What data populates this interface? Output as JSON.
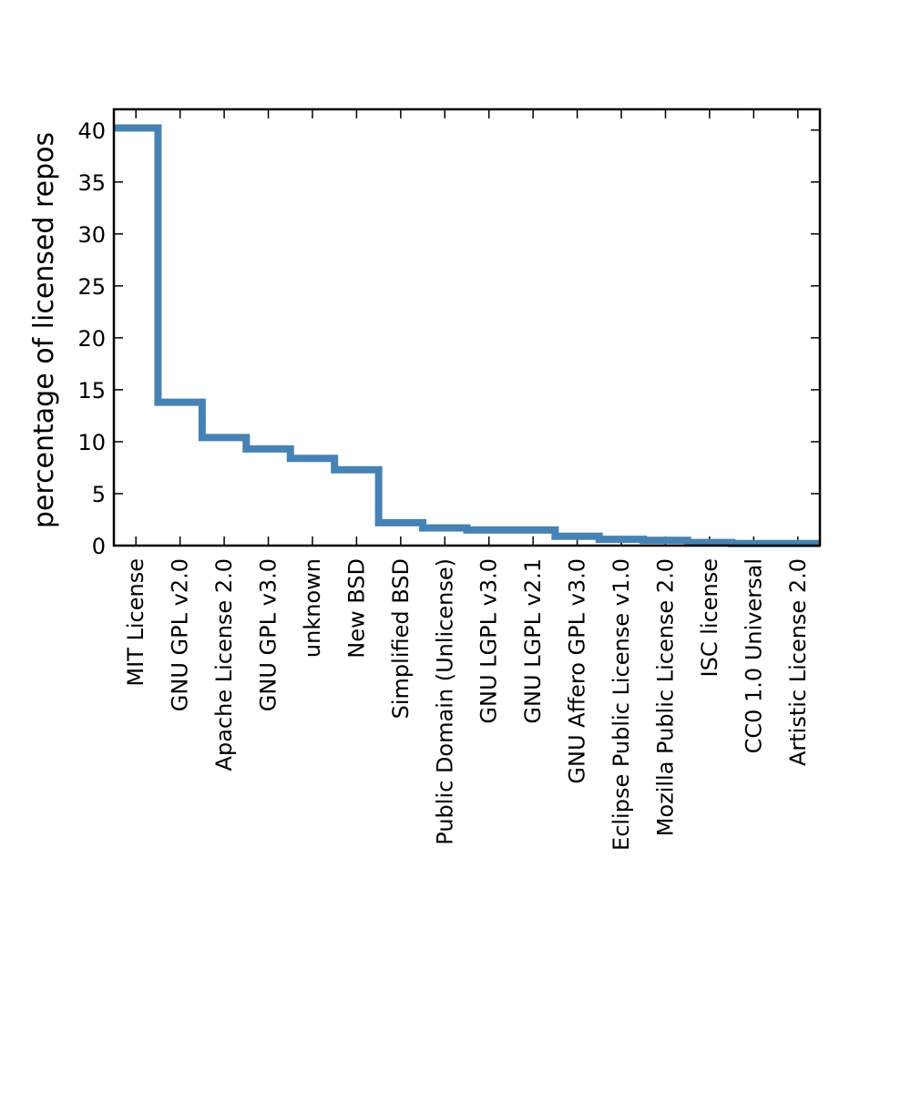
{
  "chart_data": {
    "type": "line",
    "style": "step",
    "title": "",
    "xlabel": "",
    "ylabel": "percentage of licensed repos",
    "ylim": [
      0,
      42
    ],
    "yticks": [
      0,
      5,
      10,
      15,
      20,
      25,
      30,
      35,
      40
    ],
    "grid": false,
    "line_color": "#4682b4",
    "categories": [
      "MIT License",
      "GNU GPL v2.0",
      "Apache License 2.0",
      "GNU GPL v3.0",
      "unknown",
      "New BSD",
      "Simplified BSD",
      "Public Domain (Unlicense)",
      "GNU LGPL v3.0",
      "GNU LGPL v2.1",
      "GNU Affero GPL v3.0",
      "Eclipse Public License v1.0",
      "Mozilla Public License 2.0",
      "ISC license",
      "CC0 1.0 Universal",
      "Artistic License 2.0"
    ],
    "values": [
      40.2,
      13.8,
      10.4,
      9.3,
      8.4,
      7.3,
      2.2,
      1.7,
      1.5,
      1.5,
      0.9,
      0.6,
      0.5,
      0.3,
      0.2,
      0.2
    ]
  }
}
